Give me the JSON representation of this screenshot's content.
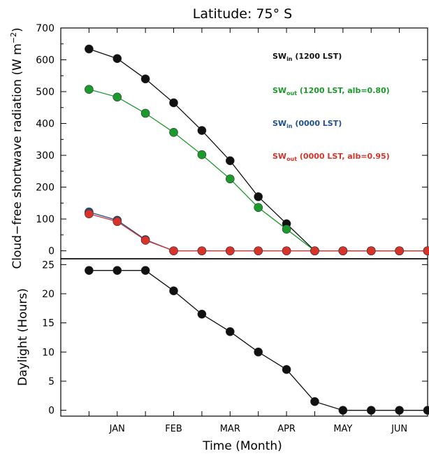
{
  "chart_data": [
    {
      "type": "line",
      "title": "Latitude: 75° S",
      "xlabel": "",
      "ylabel": "Cloud−free shortwave radiation (W m−2)",
      "ylabel_main": "Cloud−free shortwave radiation (W m",
      "ylabel_sup": "−2",
      "ylabel_close": ")",
      "x": [
        1,
        1.5,
        2,
        2.5,
        3,
        3.5,
        4,
        4.5,
        5,
        5.5,
        6,
        6.5,
        7
      ],
      "ylim": [
        -25,
        700
      ],
      "yticks": [
        "0",
        "100",
        "200",
        "300",
        "400",
        "500",
        "600",
        "700"
      ],
      "grid": false,
      "legend_position": "top-right",
      "series": [
        {
          "name": "SW_in (1200 LST)",
          "label_main": "SW",
          "label_sub": "in",
          "label_rest": " (1200 LST)",
          "color": "#111111",
          "values": [
            634,
            604,
            540,
            465,
            378,
            283,
            170,
            85,
            0,
            0,
            0,
            0,
            0
          ]
        },
        {
          "name": "SW_out (1200 LST, alb=0.80)",
          "label_main": "SW",
          "label_sub": "out",
          "label_rest": " (1200 LST, alb=0.80)",
          "color": "#1a9a2a",
          "values": [
            507,
            483,
            432,
            372,
            302,
            226,
            136,
            68,
            0,
            0,
            0,
            0,
            0
          ]
        },
        {
          "name": "SW_in (0000 LST)",
          "label_main": "SW",
          "label_sub": "in",
          "label_rest": " (0000 LST)",
          "color": "#1f4f8f",
          "values": [
            122,
            96,
            35,
            0,
            0,
            0,
            0,
            0,
            0,
            0,
            0,
            0,
            0
          ]
        },
        {
          "name": "SW_out (0000 LST, alb=0.95)",
          "label_main": "SW",
          "label_sub": "out",
          "label_rest": " (0000 LST, alb=0.95)",
          "color": "#d8332a",
          "values": [
            116,
            92,
            33,
            0,
            0,
            0,
            0,
            0,
            0,
            0,
            0,
            0,
            0
          ]
        }
      ]
    },
    {
      "type": "line",
      "title": "",
      "xlabel": "Time (Month)",
      "ylabel": "Daylight (Hours)",
      "categories": [
        "JAN",
        "FEB",
        "MAR",
        "APR",
        "MAY",
        "JUN"
      ],
      "category_x": [
        1.5,
        2.5,
        3.5,
        4.5,
        5.5,
        6.5
      ],
      "x": [
        1,
        1.5,
        2,
        2.5,
        3,
        3.5,
        4,
        4.5,
        5,
        5.5,
        6,
        6.5,
        7
      ],
      "ylim": [
        -1,
        26
      ],
      "yticks": [
        "0",
        "5",
        "10",
        "15",
        "20",
        "25"
      ],
      "grid": false,
      "series": [
        {
          "name": "",
          "color": "#111111",
          "values": [
            24,
            24,
            24,
            20.5,
            16.5,
            13.5,
            10,
            7,
            1.5,
            0,
            0,
            0,
            0
          ]
        }
      ]
    }
  ]
}
